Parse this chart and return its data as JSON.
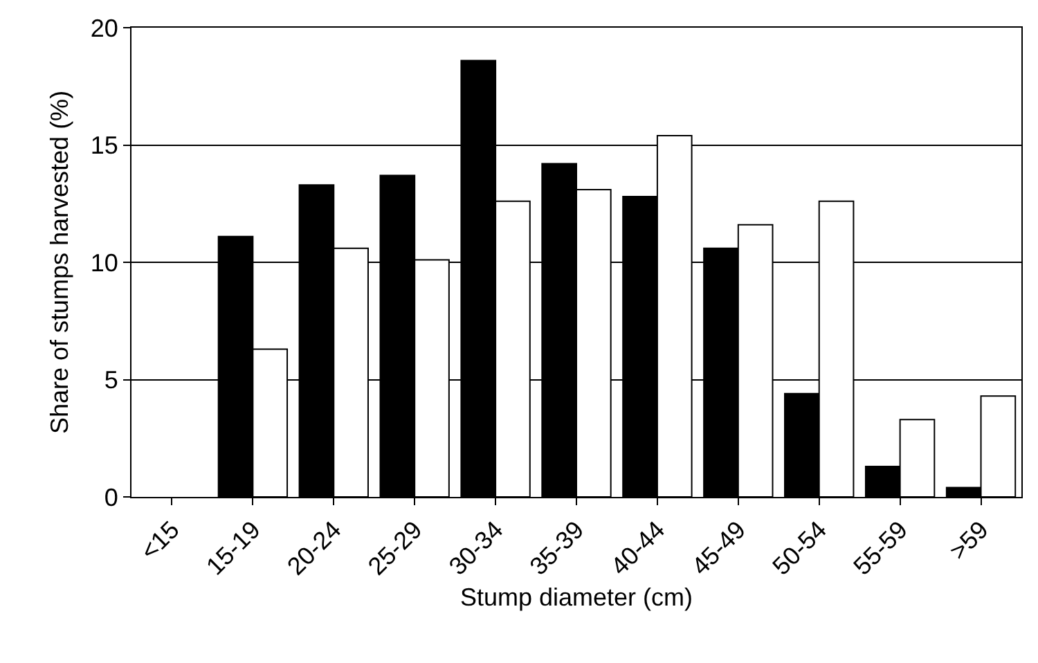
{
  "chart_data": {
    "type": "bar",
    "xlabel": "Stump diameter (cm)",
    "ylabel": "Share of stumps harvested (%)",
    "categories": [
      "<15",
      "15-19",
      "20-24",
      "25-29",
      "30-34",
      "35-39",
      "40-44",
      "45-49",
      "50-54",
      "55-59",
      ">59"
    ],
    "series": [
      {
        "color": "#000000",
        "values": [
          null,
          11.1,
          13.3,
          13.7,
          18.6,
          14.2,
          12.8,
          10.6,
          4.4,
          1.3,
          0.4
        ]
      },
      {
        "color": "#ffffff",
        "values": [
          null,
          6.3,
          10.6,
          10.1,
          12.6,
          13.1,
          15.4,
          11.6,
          12.6,
          3.3,
          4.3
        ]
      }
    ],
    "ylim": [
      0,
      20
    ],
    "yticks": [
      0,
      5,
      10,
      15,
      20
    ],
    "grid": "y"
  }
}
